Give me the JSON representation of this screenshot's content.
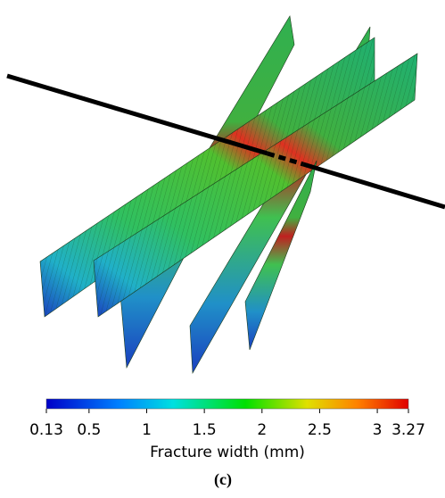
{
  "colorbar": {
    "label": "Fracture width (mm)",
    "lim": [
      0.13,
      3.27
    ],
    "ticks": [
      0.13,
      0.5,
      1,
      1.5,
      2,
      2.5,
      3,
      3.27
    ]
  },
  "caption": "(c)"
}
